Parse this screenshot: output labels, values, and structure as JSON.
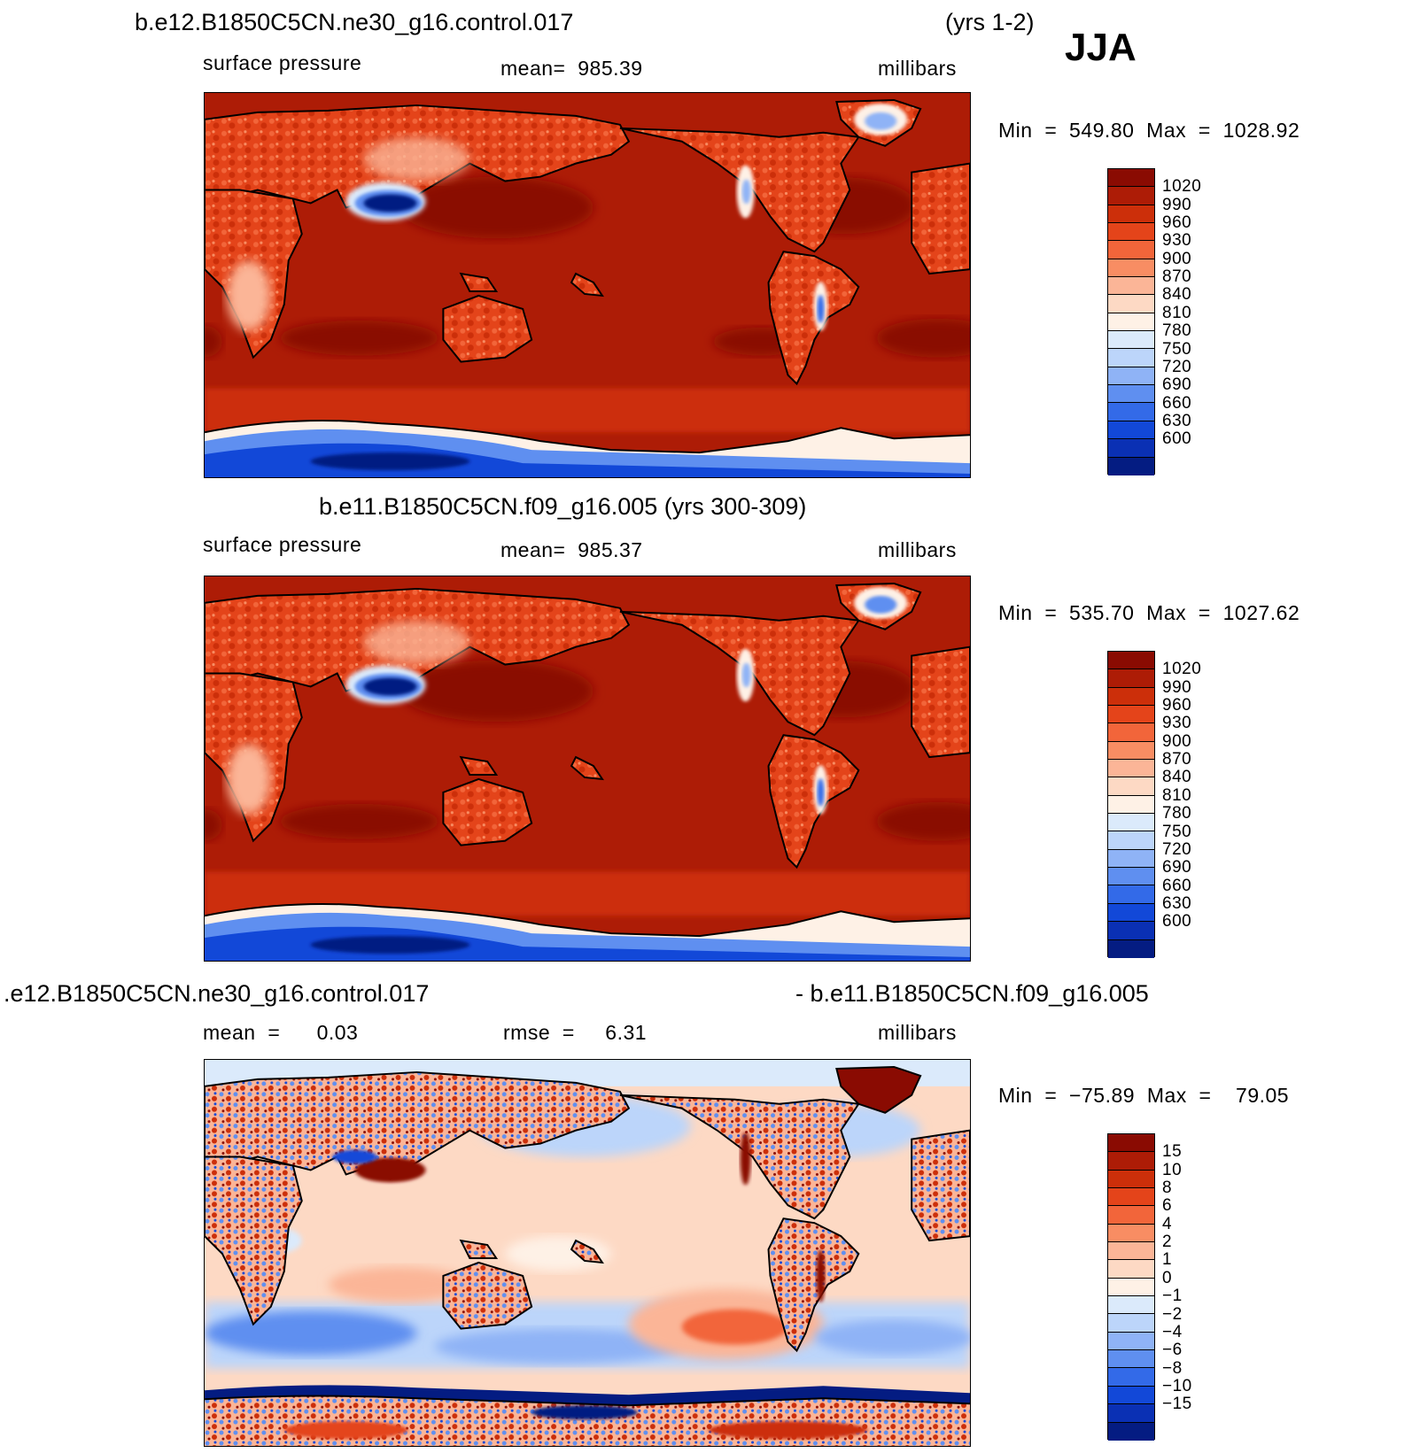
{
  "season": "JJA",
  "panels": [
    {
      "title": "b.e12.B1850C5CN.ne30_g16.control.017",
      "title_right": "(yrs 1-2)",
      "left_label": "surface pressure",
      "center_label": "mean=  985.39",
      "units": "millibars",
      "minmax": "Min  =  549.80  Max  =  1028.92"
    },
    {
      "title": "b.e11.B1850C5CN.f09_g16.005 (yrs 300-309)",
      "left_label": "surface pressure",
      "center_label": "mean=  985.37",
      "units": "millibars",
      "minmax": "Min  =  535.70  Max  =  1027.62"
    },
    {
      "title": ".e12.B1850C5CN.ne30_g16.control.017",
      "title_right": "- b.e11.B1850C5CN.f09_g16.005",
      "left_label": "mean  =      0.03",
      "center_label": "rmse  =     6.31",
      "units": "millibars",
      "minmax": "Min  =  −75.89  Max  =    79.05"
    }
  ],
  "colorbars": {
    "pressure": {
      "labels": [
        "1020",
        "990",
        "960",
        "930",
        "900",
        "870",
        "840",
        "810",
        "780",
        "750",
        "720",
        "690",
        "660",
        "630",
        "600"
      ],
      "colors": [
        "#8a0b02",
        "#ad1c06",
        "#cc2f0a",
        "#e4441a",
        "#f2653a",
        "#f88d63",
        "#fbb597",
        "#fdd9c4",
        "#fef1e6",
        "#dbeafb",
        "#bcd5fa",
        "#8fb3f6",
        "#5f8ff0",
        "#336ae8",
        "#1248d8",
        "#0a30b4",
        "#041c82"
      ]
    },
    "difference": {
      "labels": [
        "15",
        "10",
        "8",
        "6",
        "4",
        "2",
        "1",
        "0",
        "−1",
        "−2",
        "−4",
        "−6",
        "−8",
        "−10",
        "−15"
      ],
      "colors": [
        "#8a0b02",
        "#ad1c06",
        "#cc2f0a",
        "#e4441a",
        "#f2653a",
        "#f88d63",
        "#fbb597",
        "#fdd9c4",
        "#fef1e6",
        "#dbeafb",
        "#bcd5fa",
        "#8fb3f6",
        "#5f8ff0",
        "#336ae8",
        "#1248d8",
        "#0a30b4",
        "#041c82"
      ]
    }
  }
}
